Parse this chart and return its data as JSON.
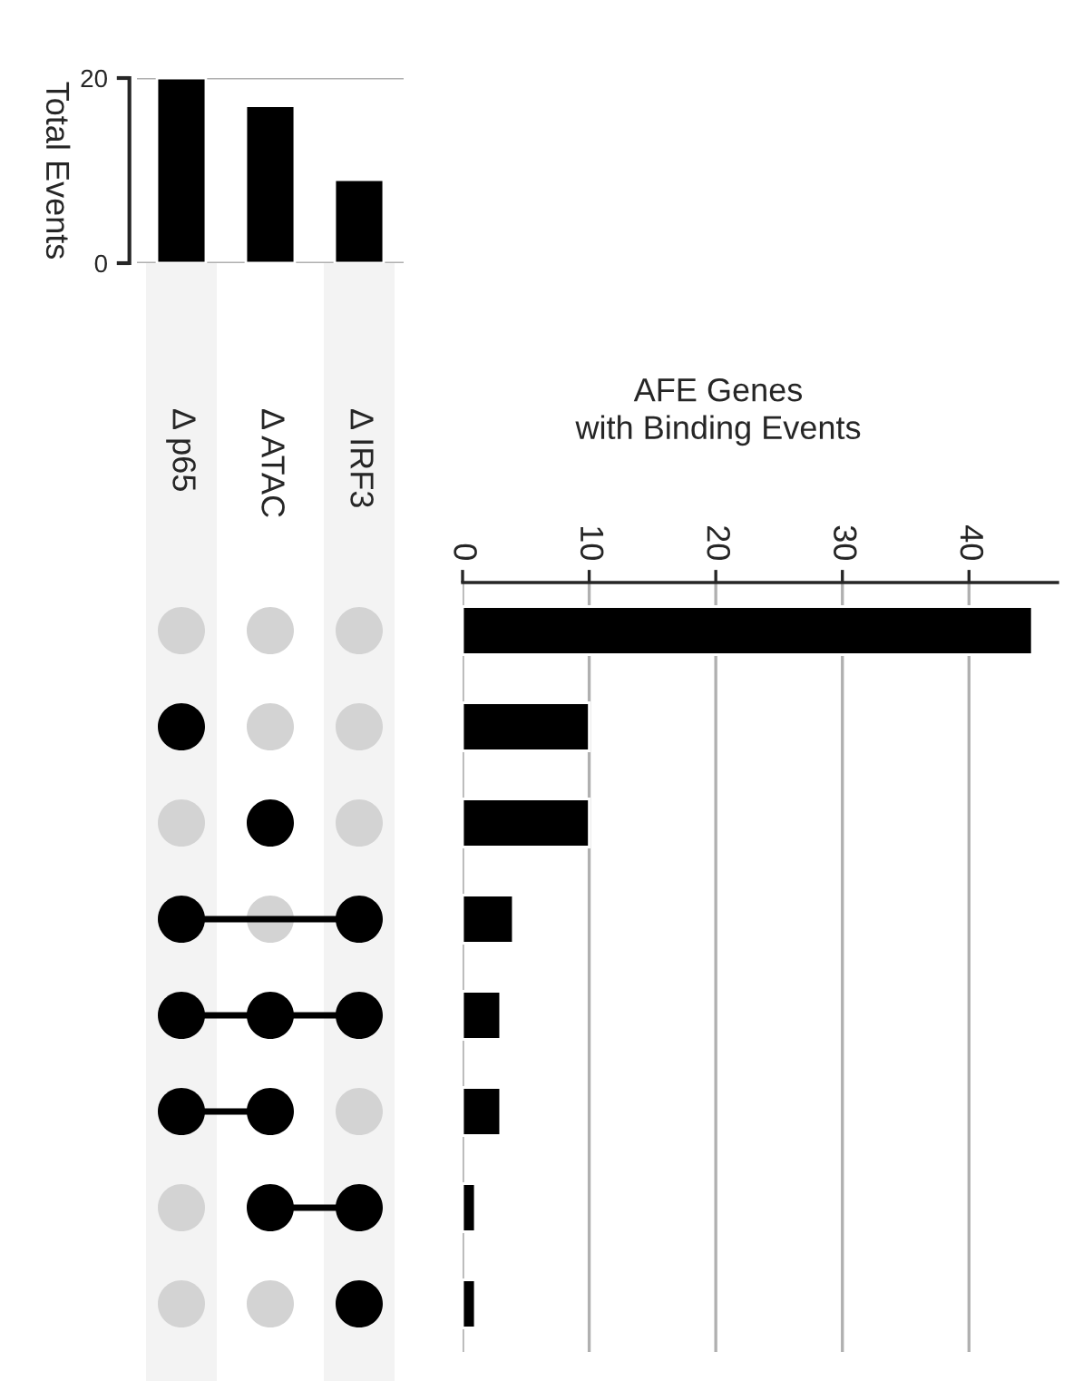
{
  "chart_data": [
    {
      "type": "bar",
      "categories": [
        "Δ p65",
        "Δ ATAC",
        "Δ IRF3"
      ],
      "values": [
        20,
        17,
        9
      ],
      "color": "#000000",
      "ylabel": "Total Events",
      "ylim": [
        0,
        20
      ],
      "yticks": [
        0,
        20
      ],
      "grid": "y"
    },
    {
      "type": "bar",
      "orientation": "horizontal",
      "title": "AFE Genes\nwith Binding Events",
      "categories": [
        null,
        null,
        null,
        null,
        null,
        null,
        null,
        null
      ],
      "values": [
        45,
        10,
        10,
        4,
        3,
        3,
        1,
        1
      ],
      "color": "#000000",
      "xlim": [
        0,
        47
      ],
      "xticks": [
        0,
        10,
        20,
        30,
        40
      ],
      "grid": "x"
    }
  ]
}
